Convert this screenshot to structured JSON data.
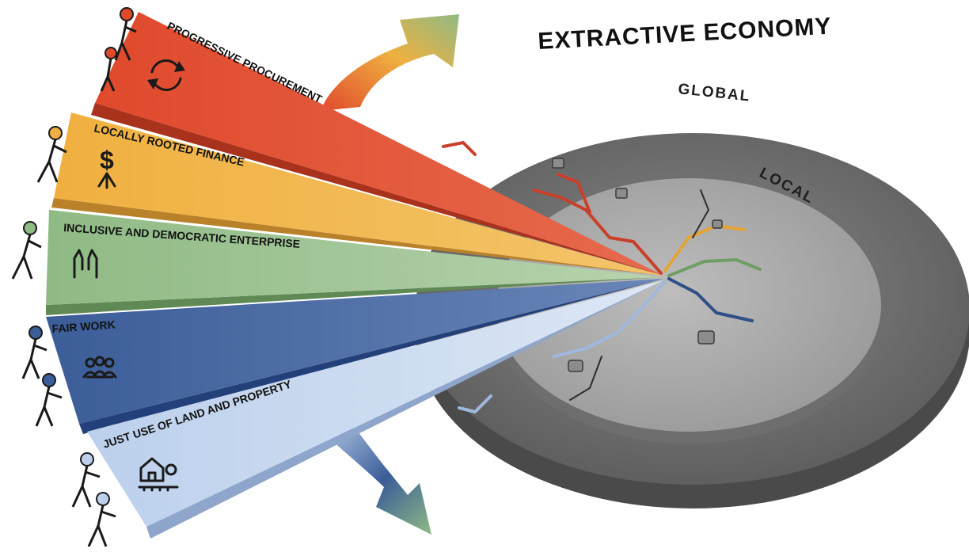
{
  "title": "EXTRACTIVE ECONOMY",
  "rings": {
    "outer": "GLOBAL",
    "inner": "LOCAL"
  },
  "strategies": [
    {
      "label": "PROGRESSIVE PROCUREMENT",
      "icon": "recycle-arrows-icon",
      "color": "#e0492c"
    },
    {
      "label": "LOCALLY ROOTED FINANCE",
      "icon": "dollar-roots-icon",
      "color": "#f0b040"
    },
    {
      "label": "INCLUSIVE AND DEMOCRATIC ENTERPRISE",
      "icon": "raised-hands-icon",
      "color": "#8fba84"
    },
    {
      "label": "FAIR WORK",
      "icon": "worker-group-icon",
      "color": "#3b5d98"
    },
    {
      "label": "JUST USE OF LAND AND PROPERTY",
      "icon": "house-garden-icon",
      "color": "#bcd0ec"
    }
  ]
}
